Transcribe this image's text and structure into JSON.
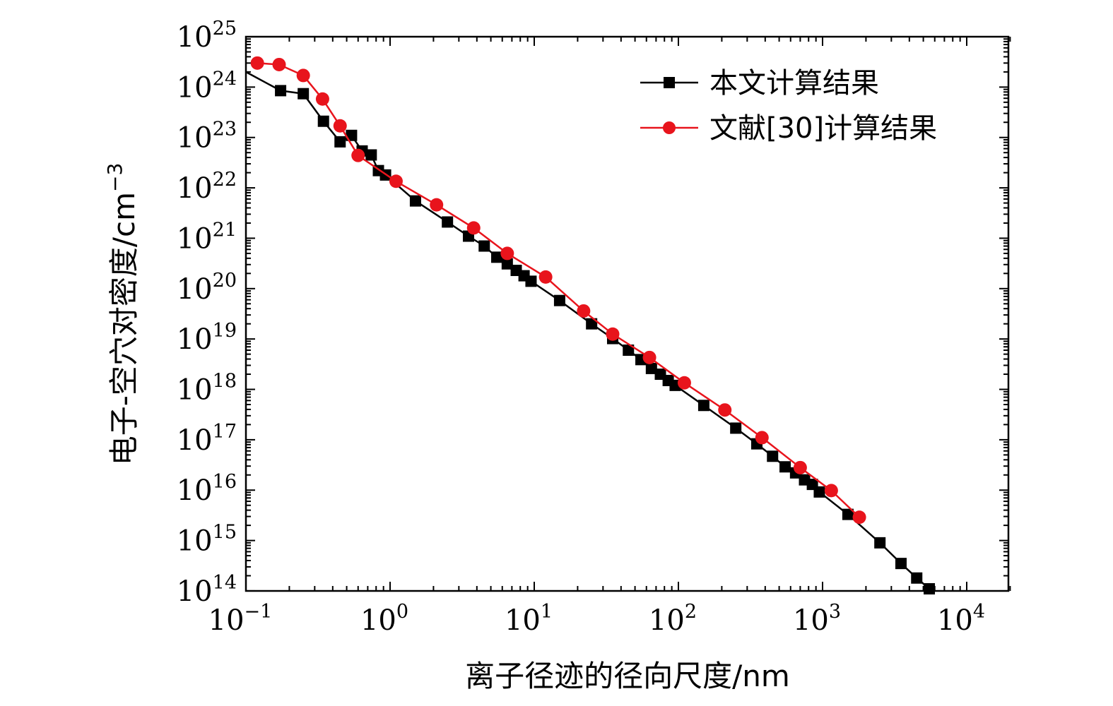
{
  "chart_data": {
    "type": "line",
    "title": "",
    "xlabel": "离子径迹的径向尺度/nm",
    "ylabel": "电子-空穴对密度/cm",
    "ylabel_exp": "−3",
    "xscale": "log",
    "yscale": "log",
    "xlim": [
      0.1,
      20000
    ],
    "ylim": [
      100000000000000.0,
      1e+25
    ],
    "x_ticks": [
      {
        "base": "10",
        "exp": "−1",
        "value": 0.1
      },
      {
        "base": "10",
        "exp": "0",
        "value": 1
      },
      {
        "base": "10",
        "exp": "1",
        "value": 10
      },
      {
        "base": "10",
        "exp": "2",
        "value": 100
      },
      {
        "base": "10",
        "exp": "3",
        "value": 1000
      },
      {
        "base": "10",
        "exp": "4",
        "value": 10000
      }
    ],
    "y_ticks": [
      {
        "base": "10",
        "exp": "14",
        "value": 100000000000000.0
      },
      {
        "base": "10",
        "exp": "15",
        "value": 1000000000000000.0
      },
      {
        "base": "10",
        "exp": "16",
        "value": 1e+16
      },
      {
        "base": "10",
        "exp": "17",
        "value": 1e+17
      },
      {
        "base": "10",
        "exp": "18",
        "value": 1e+18
      },
      {
        "base": "10",
        "exp": "19",
        "value": 1e+19
      },
      {
        "base": "10",
        "exp": "20",
        "value": 1e+20
      },
      {
        "base": "10",
        "exp": "21",
        "value": 1e+21
      },
      {
        "base": "10",
        "exp": "22",
        "value": 1e+22
      },
      {
        "base": "10",
        "exp": "23",
        "value": 1e+23
      },
      {
        "base": "10",
        "exp": "24",
        "value": 1e+24
      },
      {
        "base": "10",
        "exp": "25",
        "value": 1e+25
      }
    ],
    "grid": false,
    "legend_position": "top-right",
    "series": [
      {
        "name": "本文计算结果",
        "color": "#000000",
        "marker": "square",
        "start_y": 2e+24,
        "x": [
          0.174,
          0.25,
          0.345,
          0.45,
          0.54,
          0.64,
          0.74,
          0.83,
          0.93,
          1.5,
          2.5,
          3.5,
          4.5,
          5.5,
          6.5,
          7.5,
          8.5,
          9.5,
          15,
          25,
          35,
          45,
          55,
          65,
          75,
          85,
          95,
          150,
          250,
          350,
          450,
          550,
          650,
          750,
          850,
          950,
          1500,
          2500,
          3500,
          4500,
          5500
        ],
        "y": [
          8.5e+23,
          7.4e+23,
          2.1e+23,
          8.2e+22,
          1.1e+23,
          5.4e+22,
          4.5e+22,
          2.2e+22,
          1.8e+22,
          5.5e+21,
          2.1e+21,
          1.1e+21,
          7e+20,
          4.2e+20,
          3.1e+20,
          2.3e+20,
          1.8e+20,
          1.4e+20,
          5.8e+19,
          2e+19,
          1.02e+19,
          6e+18,
          3.9e+18,
          2.6e+18,
          2e+18,
          1.5e+18,
          1.2e+18,
          4.8e+17,
          1.7e+17,
          8.3e+16,
          4.7e+16,
          2.9e+16,
          2.2e+16,
          1.6e+16,
          1.3e+16,
          9200000000000000.0,
          3300000000000000.0,
          900000000000000.0,
          350000000000000.0,
          180000000000000.0,
          110000000000000.0
        ]
      },
      {
        "name": "文献[30]计算结果",
        "color": "#e8141c",
        "marker": "circle",
        "x": [
          0.12,
          0.17,
          0.25,
          0.34,
          0.45,
          0.6,
          1.1,
          2.1,
          3.8,
          6.5,
          12,
          22,
          35,
          63,
          110,
          210,
          380,
          700,
          1150,
          1800
        ],
        "y": [
          3e+24,
          2.8e+24,
          1.7e+24,
          5.8e+23,
          1.7e+23,
          4.4e+22,
          1.35e+22,
          4.6e+21,
          1.6e+21,
          5e+20,
          1.7e+20,
          3.6e+19,
          1.25e+19,
          4.3e+18,
          1.35e+18,
          3.9e+17,
          1.1e+17,
          2.8e+16,
          9800000000000000.0,
          2900000000000000.0
        ]
      }
    ]
  }
}
